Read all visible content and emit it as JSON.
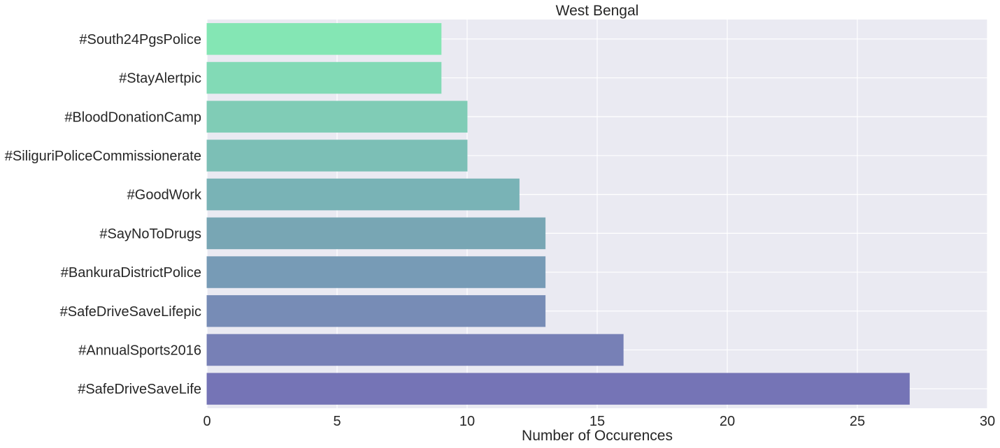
{
  "chart_data": {
    "type": "bar",
    "orientation": "horizontal",
    "title": "West Bengal",
    "xlabel": "Number of Occurences",
    "ylabel": "",
    "xlim": [
      0,
      30
    ],
    "xticks": [
      0,
      5,
      10,
      15,
      20,
      25,
      30
    ],
    "grid": true,
    "categories": [
      "#SafeDriveSaveLife",
      "#AnnualSports2016",
      "#SafeDriveSaveLifepic",
      "#BankuraDistrictPolice",
      "#SayNoToDrugs",
      "#GoodWork",
      "#SiliguriPoliceCommissionerate",
      "#BloodDonationCamp",
      "#StayAlertpic",
      "#South24PgsPolice"
    ],
    "values": [
      27,
      16,
      13,
      13,
      13,
      12,
      10,
      10,
      9,
      9
    ],
    "colors": [
      "#7574b6",
      "#7780b6",
      "#778cb6",
      "#779bb6",
      "#78a6b4",
      "#79b3b6",
      "#7cbfb6",
      "#80ccb6",
      "#82dab6",
      "#84e6b4"
    ],
    "plot_background": "#eaeaf2",
    "grid_color": "#ffffff"
  }
}
